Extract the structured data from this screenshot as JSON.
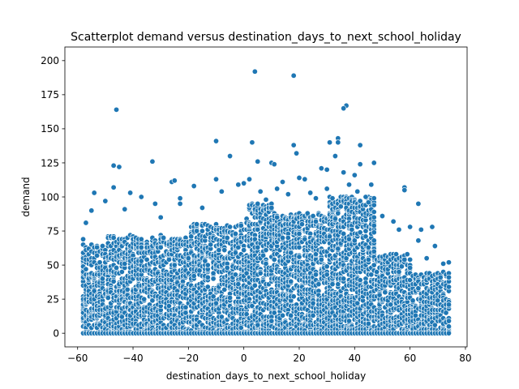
{
  "chart_data": {
    "type": "scatter",
    "title": "Scatterplot demand versus destination_days_to_next_school_holiday",
    "xlabel": "destination_days_to_next_school_holiday",
    "ylabel": "demand",
    "xlim": [
      -64.6,
      80.6
    ],
    "ylim": [
      -10,
      210
    ],
    "xticks": [
      -60,
      -40,
      -20,
      0,
      20,
      40,
      60,
      80
    ],
    "yticks": [
      0,
      25,
      50,
      75,
      100,
      125,
      150,
      175,
      200
    ],
    "grid": false,
    "legend": "none",
    "marker_color": "#1f77b4",
    "marker_edge_color": "#ffffff",
    "points": [
      {
        "x": 4,
        "y": 192
      },
      {
        "x": 18,
        "y": 189
      },
      {
        "x": -46,
        "y": 164
      },
      {
        "x": 37,
        "y": 167
      },
      {
        "x": 36,
        "y": 165
      },
      {
        "x": 34,
        "y": 143
      },
      {
        "x": 34,
        "y": 140
      },
      {
        "x": -10,
        "y": 141
      },
      {
        "x": 3,
        "y": 140
      },
      {
        "x": 18,
        "y": 138
      },
      {
        "x": 31,
        "y": 140
      },
      {
        "x": 42,
        "y": 138
      },
      {
        "x": 19,
        "y": 132
      },
      {
        "x": 33,
        "y": 130
      },
      {
        "x": -5,
        "y": 130
      },
      {
        "x": -33,
        "y": 126
      },
      {
        "x": 5,
        "y": 126
      },
      {
        "x": 10,
        "y": 125
      },
      {
        "x": 11,
        "y": 124
      },
      {
        "x": 42,
        "y": 124
      },
      {
        "x": 47,
        "y": 125
      },
      {
        "x": -47,
        "y": 123
      },
      {
        "x": -45,
        "y": 122
      },
      {
        "x": 28,
        "y": 121
      },
      {
        "x": 30,
        "y": 120
      },
      {
        "x": 36,
        "y": 118
      },
      {
        "x": 40,
        "y": 116
      },
      {
        "x": -26,
        "y": 111
      },
      {
        "x": -25,
        "y": 112
      },
      {
        "x": -10,
        "y": 113
      },
      {
        "x": -2,
        "y": 109
      },
      {
        "x": 14,
        "y": 111
      },
      {
        "x": 20,
        "y": 114
      },
      {
        "x": 22,
        "y": 113
      },
      {
        "x": 46,
        "y": 109
      },
      {
        "x": -18,
        "y": 108
      },
      {
        "x": 58,
        "y": 107
      },
      {
        "x": 58,
        "y": 105
      },
      {
        "x": -47,
        "y": 107
      },
      {
        "x": -41,
        "y": 103
      },
      {
        "x": -54,
        "y": 103
      },
      {
        "x": -37,
        "y": 100
      },
      {
        "x": 63,
        "y": 95
      },
      {
        "x": -32,
        "y": 95
      },
      {
        "x": -23,
        "y": 99
      },
      {
        "x": -23,
        "y": 95
      },
      {
        "x": 50,
        "y": 86
      },
      {
        "x": 54,
        "y": 82
      },
      {
        "x": 56,
        "y": 76
      },
      {
        "x": 60,
        "y": 78
      },
      {
        "x": 64,
        "y": 76
      },
      {
        "x": 68,
        "y": 78
      },
      {
        "x": 63,
        "y": 68
      },
      {
        "x": 69,
        "y": 64
      },
      {
        "x": 72,
        "y": 51
      },
      {
        "x": 74,
        "y": 52
      },
      {
        "x": 66,
        "y": 55
      },
      {
        "x": -57,
        "y": 81
      },
      {
        "x": -58,
        "y": 69
      },
      {
        "x": -55,
        "y": 90
      },
      {
        "x": -50,
        "y": 97
      },
      {
        "x": -43,
        "y": 91
      },
      {
        "x": -30,
        "y": 85
      },
      {
        "x": -15,
        "y": 92
      },
      {
        "x": -8,
        "y": 104
      },
      {
        "x": 0,
        "y": 110
      },
      {
        "x": 2,
        "y": 113
      },
      {
        "x": 6,
        "y": 104
      },
      {
        "x": 8,
        "y": 98
      },
      {
        "x": 12,
        "y": 106
      },
      {
        "x": 16,
        "y": 102
      },
      {
        "x": 24,
        "y": 103
      },
      {
        "x": 26,
        "y": 99
      },
      {
        "x": 30,
        "y": 106
      },
      {
        "x": 38,
        "y": 109
      },
      {
        "x": 41,
        "y": 104
      },
      {
        "x": 44,
        "y": 100
      },
      {
        "x": 45,
        "y": 96
      }
    ],
    "dense_region": {
      "x_range": [
        -58,
        74
      ],
      "segments": [
        {
          "x_from": -58,
          "x_to": -50,
          "y_max": 65
        },
        {
          "x_from": -50,
          "y_max": 72,
          "x_to": -20
        },
        {
          "x_from": -20,
          "x_to": 0,
          "y_max": 80
        },
        {
          "x_from": 0,
          "x_to": 10,
          "y_max": 95
        },
        {
          "x_from": 10,
          "x_to": 30,
          "y_max": 88
        },
        {
          "x_from": 30,
          "x_to": 47,
          "y_max": 100
        },
        {
          "x_from": 47,
          "x_to": 60,
          "y_max": 58
        },
        {
          "x_from": 60,
          "x_to": 74,
          "y_max": 45
        }
      ]
    }
  }
}
